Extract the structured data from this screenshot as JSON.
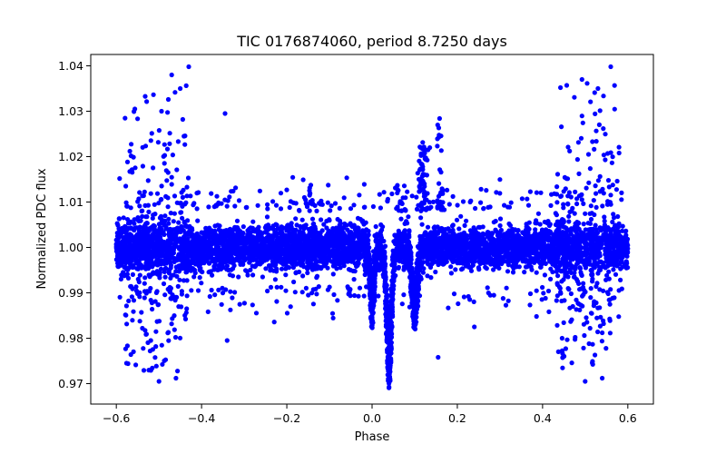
{
  "chart_data": {
    "type": "scatter",
    "title": "TIC 0176874060, period 8.7250 days",
    "xlabel": "Phase",
    "ylabel": "Normalized PDC flux",
    "xlim": [
      -0.66,
      0.66
    ],
    "ylim": [
      0.9655,
      1.0425
    ],
    "xticks": [
      -0.6,
      -0.4,
      -0.2,
      0.0,
      0.2,
      0.4,
      0.6
    ],
    "xtick_labels": [
      "−0.6",
      "−0.4",
      "−0.2",
      "0.0",
      "0.2",
      "0.4",
      "0.6"
    ],
    "yticks": [
      0.97,
      0.98,
      0.99,
      1.0,
      1.01,
      1.02,
      1.03,
      1.04
    ],
    "ytick_labels": [
      "0.97",
      "0.98",
      "0.99",
      "1.00",
      "1.01",
      "1.02",
      "1.03",
      "1.04"
    ],
    "grid": false,
    "marker_color": "#0000ff",
    "series": [
      {
        "name": "flux",
        "x_range": [
          -0.6,
          0.6
        ],
        "baseline": 1.0,
        "baseline_scatter_band": [
          0.992,
          1.008
        ],
        "features": [
          {
            "name": "eclipse-near-phase-0.0",
            "x_center": 0.0,
            "min_flux": 0.982
          },
          {
            "name": "eclipse-phase-0.04",
            "x_center": 0.04,
            "min_flux": 0.9685
          },
          {
            "name": "eclipse-phase-0.10",
            "x_center": 0.1,
            "min_flux": 0.981
          },
          {
            "name": "flare-cluster-phase-0.12",
            "x_center": 0.12,
            "max_flux": 1.0235
          },
          {
            "name": "flare-cluster-phase-0.16",
            "x_center": 0.16,
            "max_flux": 1.0285
          },
          {
            "name": "noisy-edge-left",
            "x_range": [
              -0.58,
              -0.43
            ],
            "min_flux": 0.9705,
            "max_flux": 1.0398
          },
          {
            "name": "noisy-edge-right",
            "x_range": [
              0.43,
              0.58
            ],
            "min_flux": 0.9705,
            "max_flux": 1.0398
          }
        ],
        "outliers": [
          {
            "x": -0.345,
            "y": 1.0295
          },
          {
            "x": -0.43,
            "y": 1.0398
          },
          {
            "x": 0.56,
            "y": 1.0398
          },
          {
            "x": -0.45,
            "y": 1.035
          },
          {
            "x": -0.47,
            "y": 1.038
          },
          {
            "x": 0.53,
            "y": 1.035
          },
          {
            "x": -0.5,
            "y": 0.9705
          },
          {
            "x": 0.5,
            "y": 0.9705
          },
          {
            "x": -0.46,
            "y": 0.9712
          },
          {
            "x": 0.54,
            "y": 0.9712
          },
          {
            "x": 0.24,
            "y": 0.9825
          },
          {
            "x": -0.34,
            "y": 0.9795
          },
          {
            "x": 0.155,
            "y": 0.9758
          }
        ]
      }
    ]
  }
}
